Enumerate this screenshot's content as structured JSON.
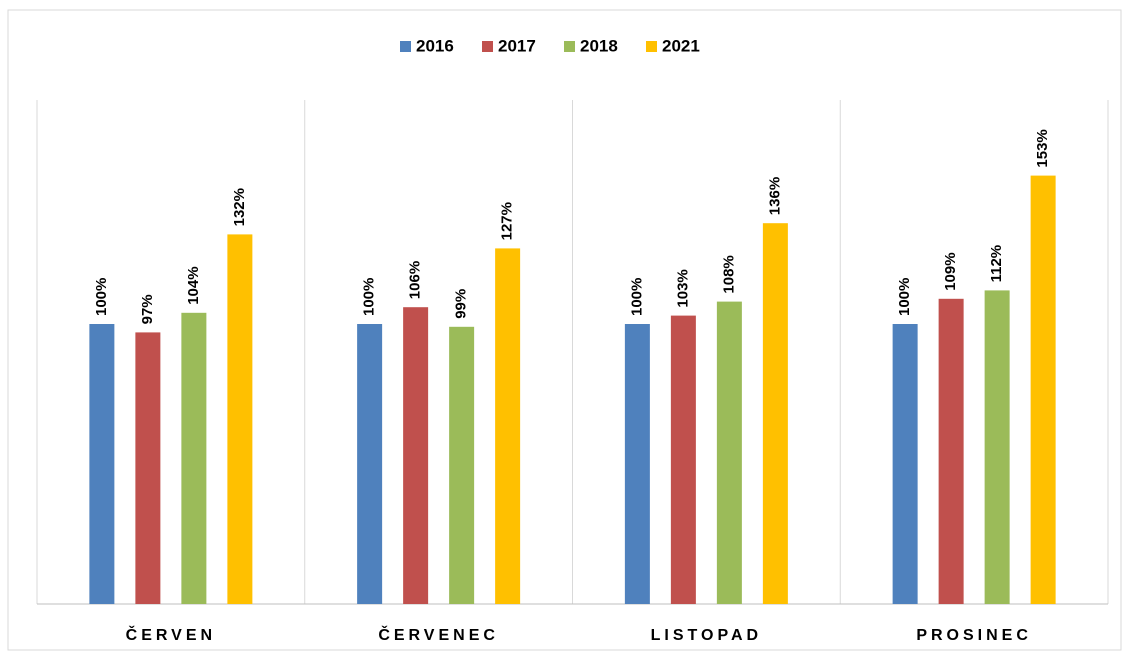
{
  "chart_data": {
    "type": "bar",
    "categories": [
      "ČERVEN",
      "ČERVENEC",
      "LISTOPAD",
      "PROSINEC"
    ],
    "series": [
      {
        "name": "2016",
        "color": "#4f81bd",
        "values": [
          100,
          100,
          100,
          100
        ],
        "value_labels": [
          "100%",
          "100%",
          "100%",
          "100%"
        ]
      },
      {
        "name": "2017",
        "color": "#c0504d",
        "values": [
          97,
          106,
          103,
          109
        ],
        "value_labels": [
          "97%",
          "106%",
          "103%",
          "109%"
        ]
      },
      {
        "name": "2018",
        "color": "#9bbb59",
        "values": [
          104,
          99,
          108,
          112
        ],
        "value_labels": [
          "104%",
          "99%",
          "108%",
          "112%"
        ]
      },
      {
        "name": "2021",
        "color": "#ffc000",
        "values": [
          132,
          127,
          136,
          153
        ],
        "value_labels": [
          "132%",
          "127%",
          "136%",
          "153%"
        ]
      }
    ],
    "ylim": [
      0,
      180
    ],
    "legend": "top"
  }
}
